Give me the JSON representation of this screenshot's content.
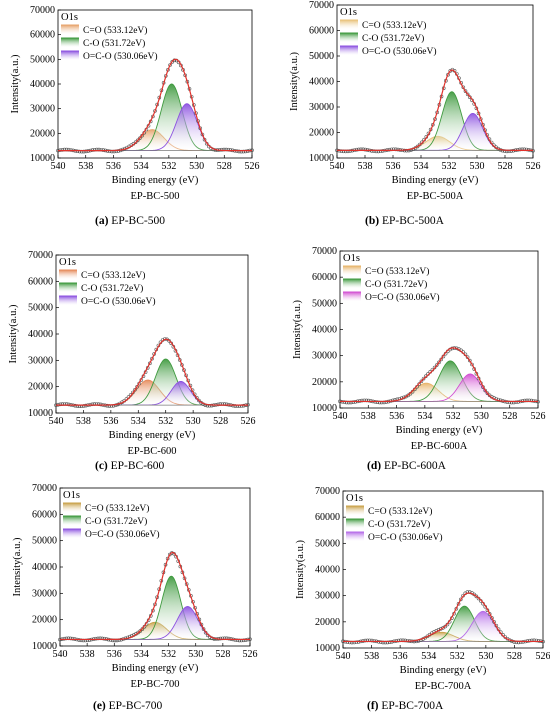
{
  "chart_data": [
    {
      "type": "line",
      "panel_label": "O1s",
      "xlabel": "Binding energy (eV)",
      "ylabel": "Intensity(a.u.)",
      "xlim": [
        540,
        526
      ],
      "x_reversed": true,
      "x_ticks": [
        540,
        538,
        536,
        534,
        532,
        530,
        528,
        526
      ],
      "ylim": [
        10000,
        70000
      ],
      "y_ticks": [
        10000,
        20000,
        30000,
        40000,
        50000,
        60000,
        70000
      ],
      "baseline": 13000,
      "envelope_height": 37000,
      "peaks": [
        {
          "name": "C=O (533.12eV)",
          "center": 533.2,
          "height": 8500,
          "sigma": 0.85,
          "color": "#e7a36b"
        },
        {
          "name": "C-O (531.72eV)",
          "center": 531.8,
          "height": 27000,
          "sigma": 0.75,
          "color": "#3f9a3f"
        },
        {
          "name": "O=C-O (530.06eV)",
          "center": 530.7,
          "height": 19000,
          "sigma": 0.75,
          "color": "#8c52e0"
        }
      ],
      "figure_title": "EP-BC-500",
      "caption_letter": "(a)",
      "caption_text": "EP-BC-500"
    },
    {
      "type": "line",
      "panel_label": "O1s",
      "xlabel": "Binding energy (eV)",
      "ylabel": "Intensity(a.u.)",
      "xlim": [
        540,
        526
      ],
      "x_reversed": true,
      "x_ticks": [
        540,
        538,
        536,
        534,
        532,
        530,
        528,
        526
      ],
      "ylim": [
        10000,
        70000
      ],
      "y_ticks": [
        10000,
        20000,
        30000,
        40000,
        50000,
        60000,
        70000
      ],
      "baseline": 13000,
      "envelope_height": 31500,
      "peaks": [
        {
          "name": "C=O (533.12eV)",
          "center": 532.8,
          "height": 5500,
          "sigma": 0.85,
          "color": "#e9c27a"
        },
        {
          "name": "C-O (531.72eV)",
          "center": 531.8,
          "height": 23000,
          "sigma": 0.7,
          "color": "#3f9a3f"
        },
        {
          "name": "O=C-O (530.06eV)",
          "center": 530.3,
          "height": 14500,
          "sigma": 0.7,
          "color": "#8c52e0"
        }
      ],
      "figure_title": "EP-BC-500A",
      "caption_letter": "(b)",
      "caption_text": "EP-BC-500A"
    },
    {
      "type": "line",
      "panel_label": "O1s",
      "xlabel": "Binding energy (eV)",
      "ylabel": "Intensity(a.u.)",
      "xlim": [
        540,
        526
      ],
      "x_reversed": true,
      "x_ticks": [
        540,
        538,
        536,
        534,
        532,
        530,
        528,
        526
      ],
      "ylim": [
        10000,
        70000
      ],
      "y_ticks": [
        10000,
        20000,
        30000,
        40000,
        50000,
        60000,
        70000
      ],
      "baseline": 13000,
      "envelope_height": 25000,
      "peaks": [
        {
          "name": "C=O (533.12eV)",
          "center": 533.3,
          "height": 9500,
          "sigma": 0.85,
          "color": "#e58a5a"
        },
        {
          "name": "C-O (531.72eV)",
          "center": 532.0,
          "height": 17500,
          "sigma": 0.75,
          "color": "#3f9a3f"
        },
        {
          "name": "O=C-O (530.06eV)",
          "center": 530.9,
          "height": 9000,
          "sigma": 0.7,
          "color": "#8c52e0"
        }
      ],
      "figure_title": "EP-BC-600",
      "caption_letter": "(c)",
      "caption_text": "EP-BC-600"
    },
    {
      "type": "line",
      "panel_label": "O1s",
      "xlabel": "Binding energy (eV)",
      "ylabel": "Intensity(a.u.)",
      "xlim": [
        540,
        526
      ],
      "x_reversed": true,
      "x_ticks": [
        540,
        538,
        536,
        534,
        532,
        530,
        528,
        526
      ],
      "ylim": [
        10000,
        70000
      ],
      "y_ticks": [
        10000,
        20000,
        30000,
        40000,
        50000,
        60000,
        70000
      ],
      "baseline": 12500,
      "envelope_height": 20500,
      "peaks": [
        {
          "name": "C=O (533.12eV)",
          "center": 533.9,
          "height": 7000,
          "sigma": 0.85,
          "color": "#e7b46a"
        },
        {
          "name": "C-O (531.72eV)",
          "center": 532.2,
          "height": 15500,
          "sigma": 0.8,
          "color": "#3f9a3f"
        },
        {
          "name": "O=C-O (530.06eV)",
          "center": 530.8,
          "height": 10500,
          "sigma": 0.75,
          "color": "#d24fd2"
        }
      ],
      "figure_title": "EP-BC-600A",
      "caption_letter": "(d)",
      "caption_text": "EP-BC-600A"
    },
    {
      "type": "line",
      "panel_label": "O1s",
      "xlabel": "Binding energy (eV)",
      "ylabel": "Intensity(a.u.)",
      "xlim": [
        540,
        526
      ],
      "x_reversed": true,
      "x_ticks": [
        540,
        538,
        536,
        534,
        532,
        530,
        528,
        526
      ],
      "ylim": [
        10000,
        70000
      ],
      "y_ticks": [
        10000,
        20000,
        30000,
        40000,
        50000,
        60000,
        70000
      ],
      "baseline": 12500,
      "envelope_height": 33000,
      "peaks": [
        {
          "name": "C=O (533.12eV)",
          "center": 533.0,
          "height": 6500,
          "sigma": 0.85,
          "color": "#c9a24a"
        },
        {
          "name": "C-O (531.72eV)",
          "center": 531.8,
          "height": 24000,
          "sigma": 0.7,
          "color": "#3f9a3f"
        },
        {
          "name": "O=C-O (530.06eV)",
          "center": 530.6,
          "height": 12500,
          "sigma": 0.75,
          "color": "#8c52e0"
        }
      ],
      "figure_title": "EP-BC-700",
      "caption_letter": "(e)",
      "caption_text": "EP-BC-700"
    },
    {
      "type": "line",
      "panel_label": "O1s",
      "xlabel": "Binding energy (eV)",
      "ylabel": "Intensity(a.u.)",
      "xlim": [
        540,
        526
      ],
      "x_reversed": true,
      "x_ticks": [
        540,
        538,
        536,
        534,
        532,
        530,
        528,
        526
      ],
      "ylim": [
        10000,
        70000
      ],
      "y_ticks": [
        10000,
        20000,
        30000,
        40000,
        50000,
        60000,
        70000
      ],
      "baseline": 12500,
      "envelope_height": 18500,
      "peaks": [
        {
          "name": "C=O (533.12eV)",
          "center": 533.1,
          "height": 3500,
          "sigma": 0.85,
          "color": "#c9a24a"
        },
        {
          "name": "C-O (531.72eV)",
          "center": 531.5,
          "height": 13500,
          "sigma": 0.7,
          "color": "#3f9a3f"
        },
        {
          "name": "O=C-O (530.06eV)",
          "center": 530.2,
          "height": 11500,
          "sigma": 0.75,
          "color": "#b56be8"
        }
      ],
      "figure_title": "EP-BC-700A",
      "caption_letter": "(f)",
      "caption_text": "EP-BC-700A"
    }
  ]
}
